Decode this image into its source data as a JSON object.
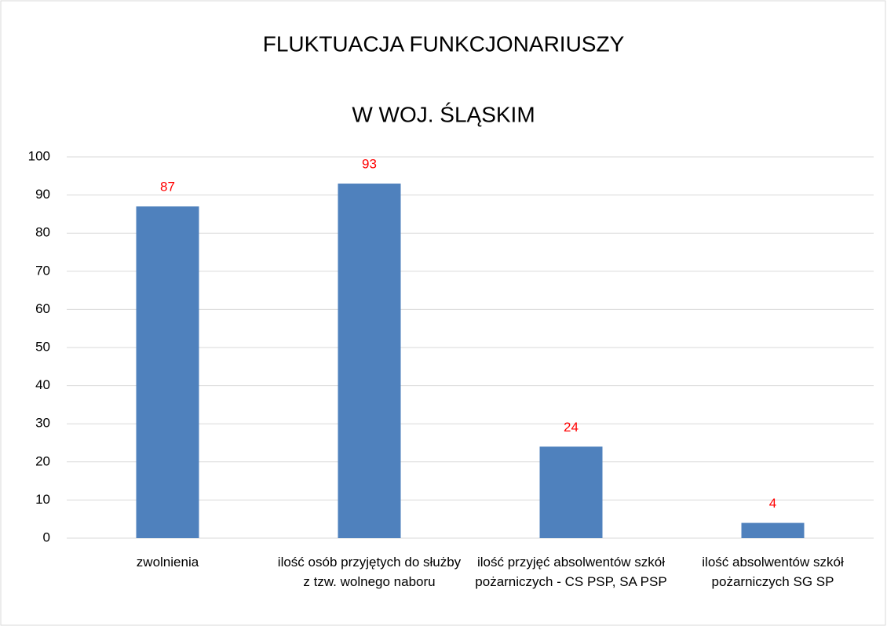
{
  "chart_data": {
    "type": "bar",
    "title": [
      "FLUKTUACJA FUNKCJONARIUSZY",
      "W WOJ. ŚLĄSKIM"
    ],
    "categories": [
      "zwolnienia",
      "ilość osób przyjętych do służby z tzw. wolnego naboru",
      "ilość przyjęć absolwentów szkół pożarniczych - CS PSP, SA PSP",
      "ilość absolwentów szkół pożarniczych SG SP"
    ],
    "values": [
      87,
      93,
      24,
      4
    ],
    "color": "#4f81bd",
    "label_color": "#ff0000",
    "ylim": [
      0,
      100
    ],
    "yticks": [
      0,
      10,
      20,
      30,
      40,
      50,
      60,
      70,
      80,
      90,
      100
    ],
    "grid": true
  }
}
